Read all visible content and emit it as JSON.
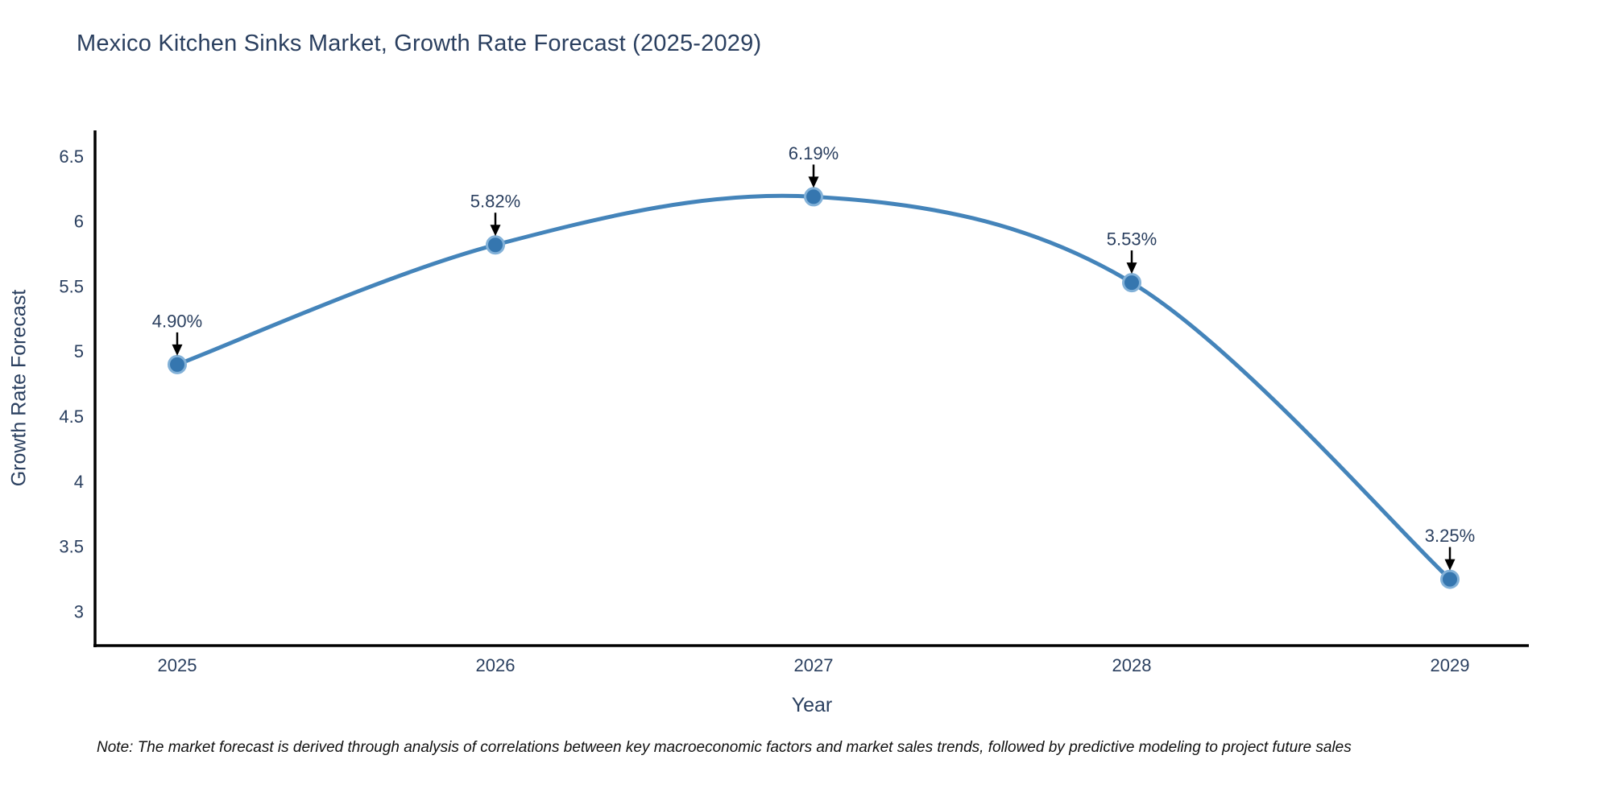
{
  "chart_data": {
    "type": "line",
    "title": "Mexico Kitchen Sinks Market, Growth Rate Forecast (2025-2029)",
    "xlabel": "Year",
    "ylabel": "Growth Rate Forecast",
    "categories": [
      "2025",
      "2026",
      "2027",
      "2028",
      "2029"
    ],
    "values": [
      4.9,
      5.82,
      6.19,
      5.53,
      3.25
    ],
    "point_labels": [
      "4.90%",
      "5.82%",
      "6.19%",
      "5.53%",
      "3.25%"
    ],
    "ytick_labels": [
      "3",
      "3.5",
      "4",
      "4.5",
      "5",
      "5.5",
      "6",
      "6.5"
    ],
    "ytick_values": [
      3,
      3.5,
      4,
      4.5,
      5,
      5.5,
      6,
      6.5
    ],
    "ylim": [
      2.74,
      6.7
    ],
    "grid": false,
    "legend": "none",
    "line_shape": "spline",
    "annotation_style": "label-with-arrow-down-to-point"
  },
  "note": "Note: The market forecast is derived through analysis of correlations between key macroeconomic factors and market sales trends, followed by predictive modeling to project future sales",
  "colors": {
    "line": "#4484ba",
    "marker_fill": "#3576af",
    "marker_ring": "#82b1d8",
    "axis_line": "#000000",
    "text": "#2a3f5f",
    "annotation_text": "#2a3f5f",
    "arrow": "#000000",
    "note_text": "#111111",
    "background": "#ffffff"
  }
}
